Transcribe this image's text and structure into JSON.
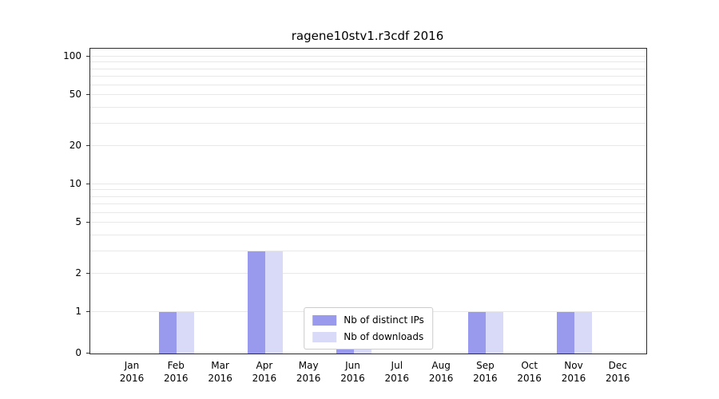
{
  "chart_data": {
    "type": "bar",
    "title": "ragene10stv1.r3cdf 2016",
    "categories": [
      {
        "month": "Jan",
        "year": "2016"
      },
      {
        "month": "Feb",
        "year": "2016"
      },
      {
        "month": "Mar",
        "year": "2016"
      },
      {
        "month": "Apr",
        "year": "2016"
      },
      {
        "month": "May",
        "year": "2016"
      },
      {
        "month": "Jun",
        "year": "2016"
      },
      {
        "month": "Jul",
        "year": "2016"
      },
      {
        "month": "Aug",
        "year": "2016"
      },
      {
        "month": "Sep",
        "year": "2016"
      },
      {
        "month": "Oct",
        "year": "2016"
      },
      {
        "month": "Nov",
        "year": "2016"
      },
      {
        "month": "Dec",
        "year": "2016"
      }
    ],
    "series": [
      {
        "name": "Nb of distinct IPs",
        "color": "#9999ee",
        "values": [
          0,
          1,
          0,
          3,
          0,
          1,
          0,
          0,
          1,
          0,
          1,
          0
        ]
      },
      {
        "name": "Nb of downloads",
        "color": "#d9d9f8",
        "values": [
          0,
          1,
          0,
          3,
          0,
          1,
          0,
          0,
          1,
          0,
          1,
          0
        ]
      }
    ],
    "yticks": [
      0,
      1,
      2,
      5,
      10,
      20,
      50,
      100
    ],
    "ylim": [
      0,
      140
    ],
    "yscale": "symlog",
    "xlabel": "",
    "ylabel": "",
    "grid": true,
    "legend_position": "bottom-center",
    "gridline_color": "#e8e8e8"
  }
}
